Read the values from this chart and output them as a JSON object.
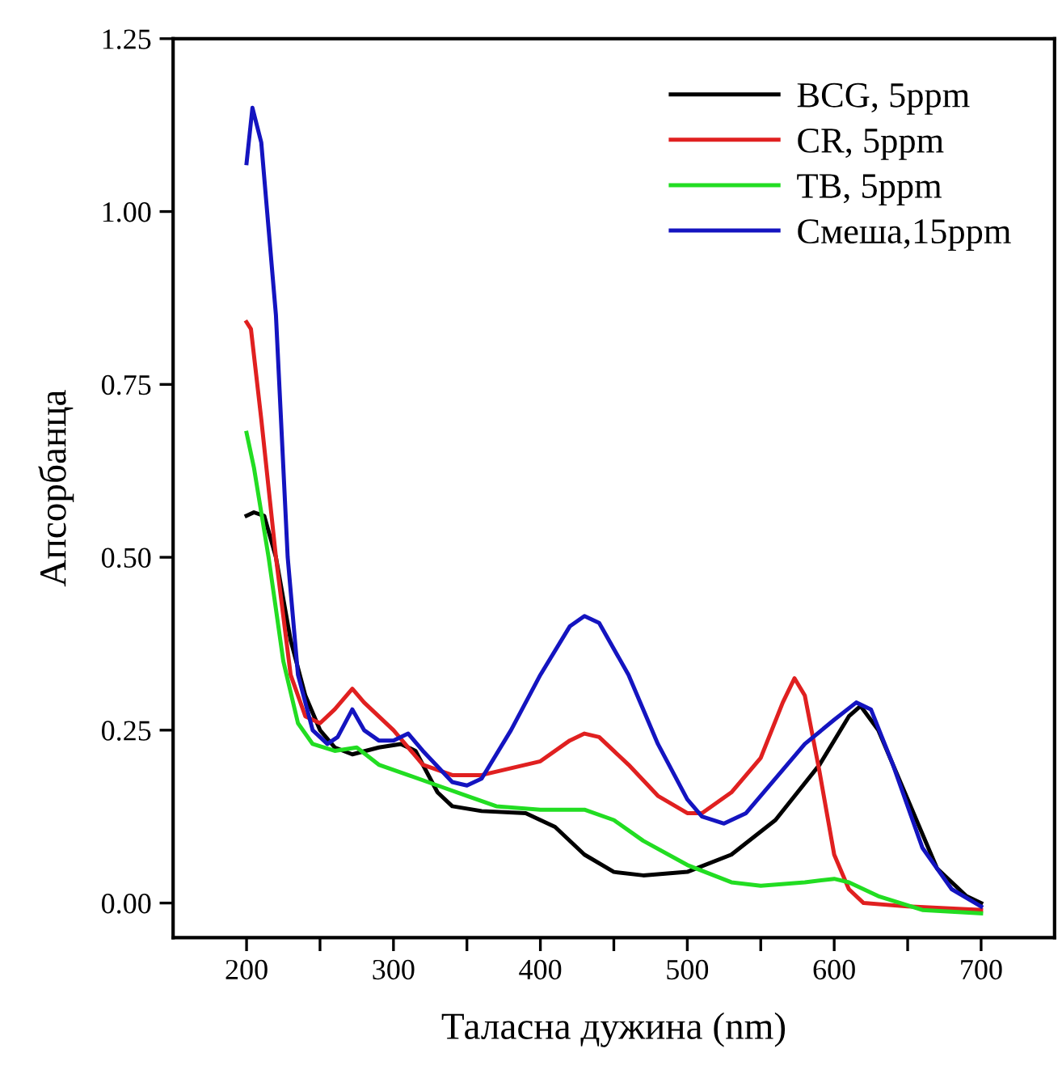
{
  "chart_data": {
    "type": "line",
    "xlabel": "Таласна дужина (nm)",
    "ylabel": "Апсорбанца",
    "xlim": [
      150,
      750
    ],
    "ylim": [
      -0.05,
      1.25
    ],
    "xticks": [
      200,
      {
        "value": 250,
        "label": null
      },
      300,
      {
        "value": 350,
        "label": null
      },
      400,
      {
        "value": 450,
        "label": null
      },
      500,
      {
        "value": 550,
        "label": null
      },
      600,
      {
        "value": 650,
        "label": null
      },
      700
    ],
    "yticks": [
      {
        "value": 0,
        "label": "0.00"
      },
      0.25,
      {
        "value": 0.5,
        "label": "0.50"
      },
      0.75,
      {
        "value": 1,
        "label": "1.00"
      },
      1.25
    ],
    "grid": false,
    "legend": "top right",
    "line_style": "solid",
    "marker": "none",
    "series": [
      {
        "name": "BCG, 5ppm",
        "color": "#000000",
        "x": [
          200,
          205,
          212,
          220,
          230,
          240,
          250,
          260,
          272,
          290,
          305,
          315,
          330,
          340,
          360,
          390,
          410,
          430,
          450,
          470,
          500,
          530,
          560,
          590,
          610,
          618,
          630,
          650,
          670,
          690,
          700
        ],
        "values": [
          0.56,
          0.565,
          0.56,
          0.5,
          0.38,
          0.3,
          0.25,
          0.225,
          0.215,
          0.225,
          0.23,
          0.22,
          0.16,
          0.14,
          0.133,
          0.13,
          0.11,
          0.07,
          0.045,
          0.04,
          0.045,
          0.07,
          0.12,
          0.2,
          0.27,
          0.285,
          0.25,
          0.15,
          0.05,
          0.01,
          0.0
        ]
      },
      {
        "name": "CR, 5ppm",
        "color": "#e02020",
        "x": [
          200,
          203,
          210,
          220,
          230,
          240,
          250,
          260,
          272,
          280,
          300,
          320,
          340,
          360,
          380,
          400,
          420,
          430,
          440,
          460,
          480,
          500,
          510,
          530,
          550,
          565,
          573,
          580,
          590,
          600,
          610,
          620,
          650,
          700
        ],
        "values": [
          0.84,
          0.83,
          0.7,
          0.5,
          0.33,
          0.27,
          0.26,
          0.28,
          0.31,
          0.29,
          0.25,
          0.2,
          0.185,
          0.185,
          0.195,
          0.205,
          0.235,
          0.245,
          0.24,
          0.2,
          0.155,
          0.13,
          0.13,
          0.16,
          0.21,
          0.29,
          0.325,
          0.3,
          0.19,
          0.07,
          0.02,
          0.0,
          -0.005,
          -0.01
        ]
      },
      {
        "name": "TB, 5ppm",
        "color": "#22dd22",
        "x": [
          200,
          205,
          215,
          225,
          235,
          245,
          260,
          275,
          290,
          310,
          330,
          350,
          370,
          400,
          430,
          450,
          470,
          500,
          530,
          550,
          580,
          600,
          610,
          630,
          660,
          700
        ],
        "values": [
          0.68,
          0.63,
          0.5,
          0.35,
          0.26,
          0.23,
          0.22,
          0.225,
          0.2,
          0.185,
          0.17,
          0.155,
          0.14,
          0.135,
          0.135,
          0.12,
          0.09,
          0.055,
          0.03,
          0.025,
          0.03,
          0.035,
          0.03,
          0.01,
          -0.01,
          -0.015
        ]
      },
      {
        "name": "Смеша,15ppm",
        "color": "#1414c0",
        "x": [
          200,
          204,
          210,
          220,
          228,
          235,
          245,
          255,
          262,
          272,
          280,
          290,
          300,
          310,
          320,
          340,
          350,
          360,
          380,
          400,
          420,
          430,
          440,
          460,
          480,
          500,
          510,
          525,
          540,
          560,
          580,
          600,
          615,
          625,
          640,
          660,
          680,
          700
        ],
        "values": [
          1.07,
          1.15,
          1.1,
          0.85,
          0.5,
          0.33,
          0.25,
          0.23,
          0.24,
          0.28,
          0.25,
          0.235,
          0.235,
          0.245,
          0.22,
          0.175,
          0.17,
          0.18,
          0.25,
          0.33,
          0.4,
          0.415,
          0.405,
          0.33,
          0.23,
          0.15,
          0.125,
          0.115,
          0.13,
          0.18,
          0.23,
          0.265,
          0.29,
          0.28,
          0.2,
          0.08,
          0.02,
          -0.005
        ]
      }
    ]
  }
}
